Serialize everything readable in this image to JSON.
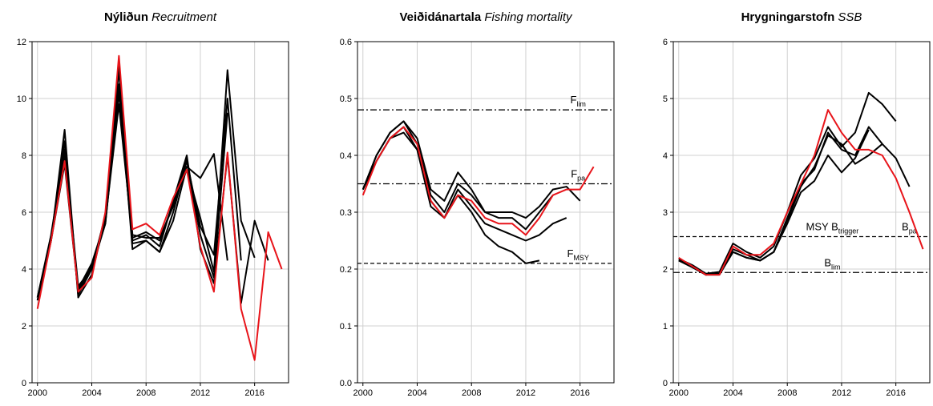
{
  "chart_data": [
    {
      "type": "line",
      "title": "Nýliðun",
      "title_en": "Recruitment",
      "x": [
        2000,
        2001,
        2002,
        2003,
        2004,
        2005,
        2006,
        2007,
        2008,
        2009,
        2010,
        2011,
        2012,
        2013,
        2014,
        2015,
        2016,
        2017,
        2018
      ],
      "xlim": [
        1999.6,
        2018.5
      ],
      "xticks": [
        2000,
        2004,
        2008,
        2012,
        2016
      ],
      "ylim": [
        0,
        12
      ],
      "yticks": [
        0,
        2,
        4,
        6,
        8,
        10,
        12
      ],
      "grid": true,
      "series": [
        {
          "color": "#000000",
          "values": [
            3.0,
            5.0,
            8.9,
            3.0,
            3.8,
            5.8,
            11.0,
            5.0,
            5.2,
            4.8,
            6.4,
            8.0,
            4.7,
            3.5,
            8.0,
            2.8,
            5.7,
            4.3,
            null
          ]
        },
        {
          "color": "#000000",
          "values": [
            2.9,
            5.0,
            8.5,
            3.1,
            4.0,
            5.6,
            10.5,
            4.7,
            5.0,
            4.6,
            5.7,
            7.6,
            7.2,
            8.05,
            4.3,
            null,
            null,
            null,
            null
          ]
        },
        {
          "color": "#000000",
          "values": [
            3.0,
            5.1,
            8.0,
            3.3,
            4.2,
            5.7,
            9.8,
            5.1,
            5.3,
            5.0,
            6.3,
            7.5,
            5.8,
            3.9,
            11.0,
            5.7,
            4.4,
            null,
            null
          ]
        },
        {
          "color": "#000000",
          "values": [
            2.9,
            5.0,
            7.7,
            3.2,
            4.1,
            5.6,
            10.2,
            4.9,
            5.0,
            4.6,
            6.0,
            7.8,
            5.5,
            4.5,
            10.0,
            4.3,
            null,
            null,
            null
          ]
        },
        {
          "color": "#000000",
          "values": [
            3.0,
            5.2,
            8.2,
            3.4,
            4.0,
            5.9,
            11.2,
            5.2,
            5.1,
            5.1,
            6.2,
            7.9,
            5.2,
            3.7,
            9.5,
            null,
            null,
            null,
            null
          ]
        },
        {
          "color": "#e8141a",
          "values": [
            2.6,
            5.0,
            7.8,
            3.2,
            3.7,
            6.0,
            11.5,
            5.4,
            5.6,
            5.2,
            6.5,
            7.5,
            4.8,
            3.2,
            8.1,
            2.6,
            0.8,
            5.3,
            4.0
          ]
        }
      ]
    },
    {
      "type": "line",
      "title": "Veiðidánartala",
      "title_en": "Fishing mortality",
      "x": [
        2000,
        2001,
        2002,
        2003,
        2004,
        2005,
        2006,
        2007,
        2008,
        2009,
        2010,
        2011,
        2012,
        2013,
        2014,
        2015,
        2016,
        2017
      ],
      "xlim": [
        1999.6,
        2018.5
      ],
      "xticks": [
        2000,
        2004,
        2008,
        2012,
        2016
      ],
      "ylim": [
        0,
        0.6
      ],
      "yticks": [
        {
          "value": 0,
          "label": "0.0"
        },
        0.1,
        0.2,
        0.3,
        0.4,
        0.5,
        0.6
      ],
      "grid": true,
      "reference_lines": [
        {
          "value": 0.48,
          "style": "dashdot",
          "labels": [
            {
              "text": "F",
              "sub": "lim"
            }
          ]
        },
        {
          "value": 0.35,
          "style": "dashdot",
          "labels": [
            {
              "text": "F",
              "sub": "pa"
            }
          ]
        },
        {
          "value": 0.21,
          "style": "dashed",
          "labels": [
            {
              "text": "F",
              "sub": "MSY"
            }
          ]
        }
      ],
      "series": [
        {
          "color": "#000000",
          "values": [
            0.34,
            0.4,
            0.44,
            0.46,
            0.43,
            0.34,
            0.32,
            0.37,
            0.34,
            0.3,
            0.3,
            0.3,
            0.29,
            0.31,
            0.34,
            0.345,
            0.32,
            null
          ]
        },
        {
          "color": "#000000",
          "values": [
            0.34,
            0.39,
            0.43,
            0.45,
            0.41,
            0.32,
            0.29,
            0.34,
            0.31,
            0.28,
            0.27,
            0.26,
            0.25,
            0.26,
            0.28,
            0.29,
            null,
            null
          ]
        },
        {
          "color": "#000000",
          "values": [
            0.34,
            0.4,
            0.44,
            0.46,
            0.42,
            0.33,
            0.3,
            0.35,
            0.33,
            0.3,
            0.29,
            0.29,
            0.27,
            0.3,
            0.33,
            null,
            null,
            null
          ]
        },
        {
          "color": "#000000",
          "values": [
            0.34,
            0.39,
            0.43,
            0.44,
            0.41,
            0.31,
            0.29,
            0.33,
            0.3,
            0.26,
            0.24,
            0.23,
            0.21,
            0.215,
            null,
            null,
            null,
            null
          ]
        },
        {
          "color": "#e8141a",
          "values": [
            0.33,
            0.39,
            0.43,
            0.45,
            0.42,
            0.32,
            0.29,
            0.33,
            0.32,
            0.29,
            0.28,
            0.28,
            0.26,
            0.29,
            0.33,
            0.34,
            0.34,
            0.38
          ]
        }
      ]
    },
    {
      "type": "line",
      "title": "Hrygningarstofn",
      "title_en": "SSB",
      "x": [
        2000,
        2001,
        2002,
        2003,
        2004,
        2005,
        2006,
        2007,
        2008,
        2009,
        2010,
        2011,
        2012,
        2013,
        2014,
        2015,
        2016,
        2017,
        2018
      ],
      "xlim": [
        1999.6,
        2018.5
      ],
      "xticks": [
        2000,
        2004,
        2008,
        2012,
        2016
      ],
      "ylim": [
        0,
        6
      ],
      "yticks": [
        0,
        1,
        2,
        3,
        4,
        5,
        6
      ],
      "grid": true,
      "reference_lines": [
        {
          "value": 2.57,
          "style": "dashed",
          "labels": [
            {
              "text": "MSY B",
              "sub": "trigger"
            },
            {
              "text": "B",
              "sub": "pa"
            }
          ]
        },
        {
          "value": 1.94,
          "style": "dashdot",
          "labels": [
            {
              "text": "B",
              "sub": "lim"
            }
          ]
        }
      ],
      "series": [
        {
          "color": "#000000",
          "values": [
            2.18,
            2.07,
            1.92,
            1.95,
            2.45,
            2.3,
            2.2,
            2.4,
            3.0,
            3.65,
            3.95,
            4.5,
            4.15,
            4.4,
            5.1,
            4.9,
            4.6,
            null,
            null
          ]
        },
        {
          "color": "#000000",
          "values": [
            2.15,
            2.05,
            1.9,
            1.92,
            2.35,
            2.25,
            2.15,
            2.3,
            2.9,
            3.5,
            3.75,
            4.4,
            4.1,
            4.0,
            4.5,
            4.2,
            3.95,
            3.45,
            null
          ]
        },
        {
          "color": "#000000",
          "values": [
            2.15,
            2.03,
            1.9,
            1.92,
            2.3,
            2.2,
            2.15,
            2.3,
            2.8,
            3.35,
            3.55,
            4.0,
            3.7,
            3.95,
            4.45,
            null,
            null,
            null,
            null
          ]
        },
        {
          "color": "#000000",
          "values": [
            2.15,
            2.05,
            1.9,
            1.9,
            2.3,
            2.2,
            2.15,
            2.3,
            2.85,
            3.45,
            3.8,
            4.35,
            4.2,
            3.85,
            4.0,
            4.2,
            null,
            null,
            null
          ]
        },
        {
          "color": "#e8141a",
          "values": [
            2.2,
            2.05,
            1.9,
            1.9,
            2.4,
            2.25,
            2.25,
            2.45,
            3.0,
            3.5,
            4.0,
            4.8,
            4.4,
            4.1,
            4.1,
            4.0,
            3.6,
            3.0,
            2.35
          ]
        }
      ]
    }
  ]
}
